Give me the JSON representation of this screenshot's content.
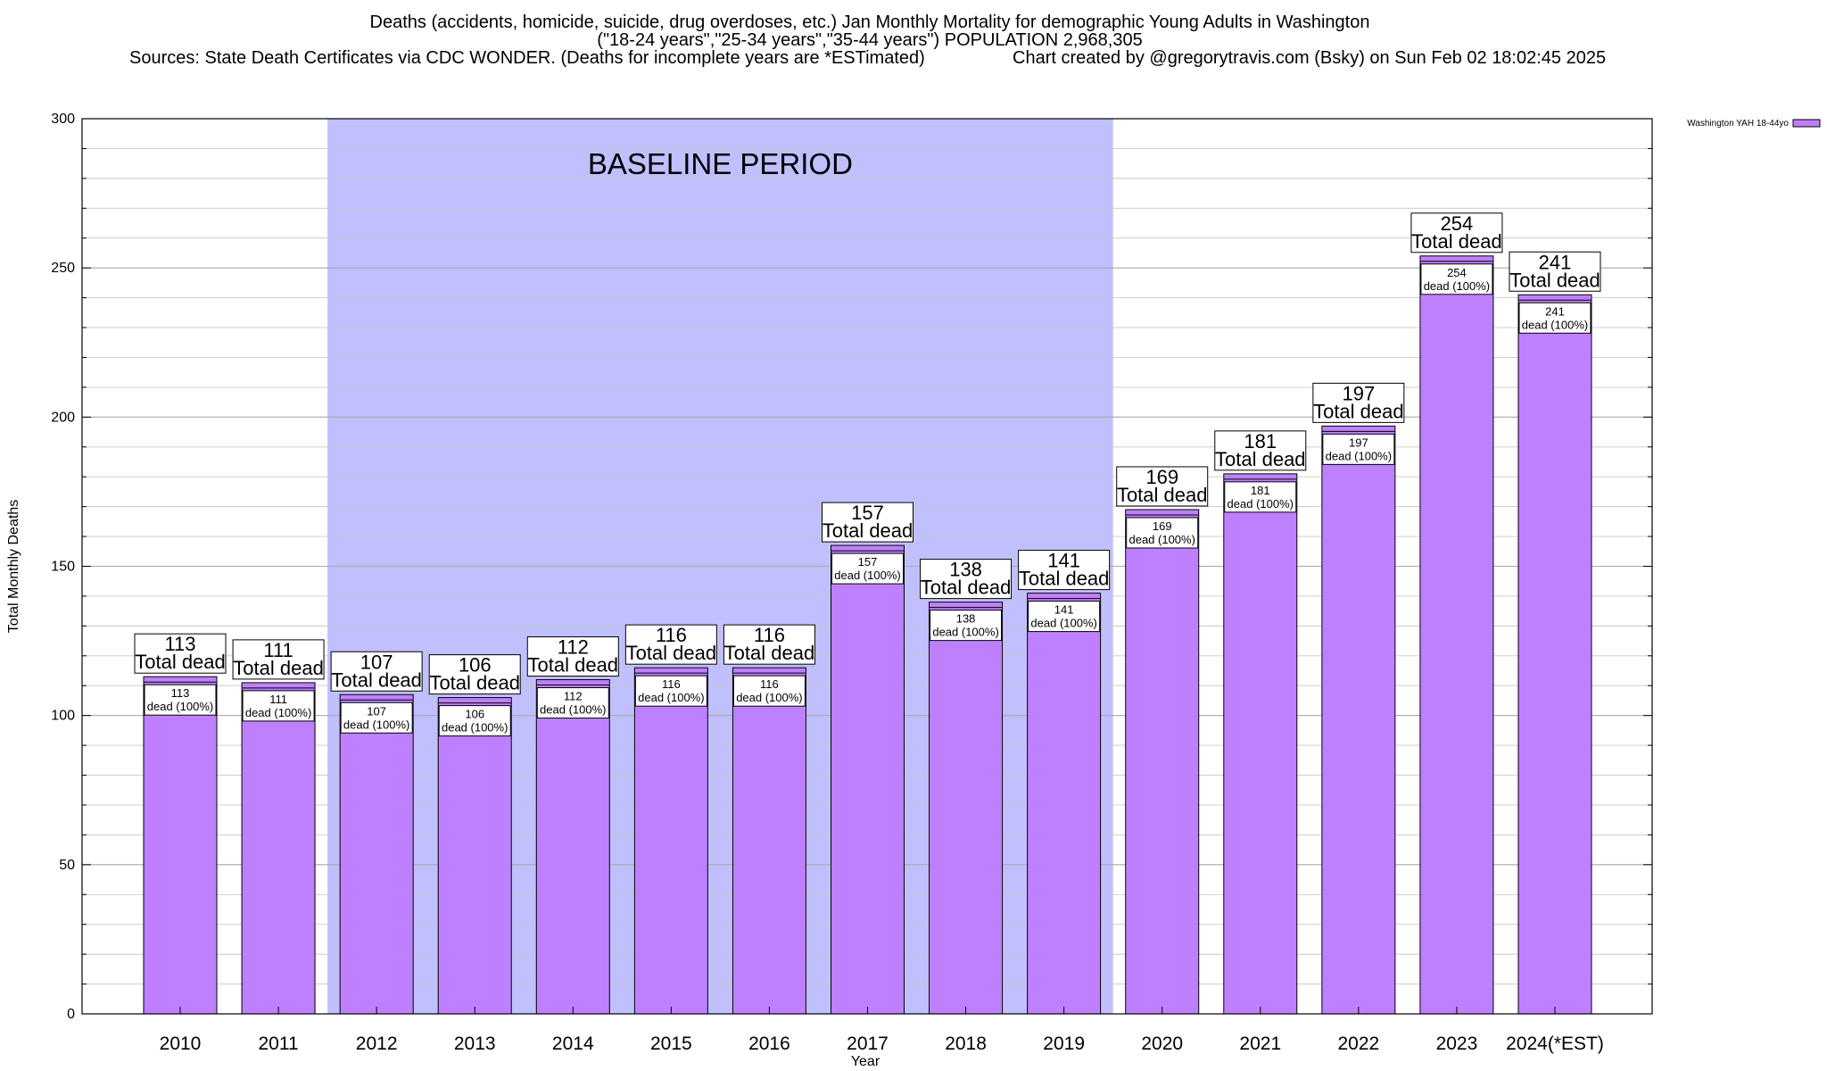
{
  "header": {
    "line1": "Deaths (accidents, homicide, suicide, drug overdoses, etc.) Jan Monthly Mortality for demographic Young Adults in Washington",
    "line2": "(\"18-24 years\",\"25-34 years\",\"35-44 years\") POPULATION 2,968,305",
    "line3_left": "Sources: State Death Certificates via CDC WONDER. (Deaths for incomplete years are *ESTimated)",
    "line3_right": "Chart created by @gregorytravis.com (Bsky) on Sun Feb 02 18:02:45 2025"
  },
  "colors": {
    "bar": "#bf80ff",
    "baseline_band": "#c0c0ff",
    "grid": "#c8c8c8"
  },
  "chart_data": {
    "type": "bar",
    "xlabel": "Year",
    "ylabel": "Total Monthly Deaths",
    "ylim": [
      0,
      300
    ],
    "yticks": [
      0,
      50,
      100,
      150,
      200,
      250,
      300
    ],
    "grid": true,
    "legend": {
      "placement": "top-right",
      "entries": [
        "Washington YAH 18-44yo"
      ]
    },
    "categories": [
      "2010",
      "2011",
      "2012",
      "2013",
      "2014",
      "2015",
      "2016",
      "2017",
      "2018",
      "2019",
      "2020",
      "2021",
      "2022",
      "2023",
      "2024(*EST)"
    ],
    "series": [
      {
        "name": "Washington YAH 18-44yo",
        "values": [
          113,
          111,
          107,
          106,
          112,
          116,
          116,
          157,
          138,
          141,
          169,
          181,
          197,
          254,
          241
        ]
      }
    ],
    "baseline_band": {
      "label": "BASELINE PERIOD",
      "from": "2012",
      "to": "2019"
    },
    "total_label_suffix": "Total dead",
    "inner_label_suffix": "dead (100%)"
  }
}
